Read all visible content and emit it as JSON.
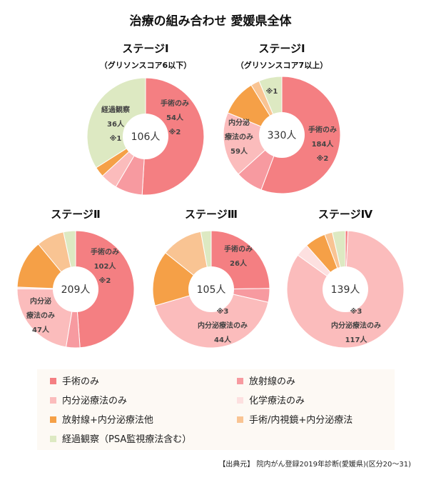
{
  "title": "治療の組み合わせ 愛媛県全体",
  "categories": [
    "手術のみ",
    "放射線のみ",
    "内分泌療法のみ",
    "化学療法のみ",
    "放射線+内分泌療法他",
    "手術/内視鏡+内分泌療法",
    "経過観察（PSA監視療法含む）"
  ],
  "colors": [
    "#f47f82",
    "#f79aa0",
    "#fbbcbc",
    "#fde0e0",
    "#f5a047",
    "#f9c493",
    "#dde9c2"
  ],
  "legend": [
    {
      "label": "手術のみ",
      "color": "#f47f82"
    },
    {
      "label": "放射線のみ",
      "color": "#f79aa0"
    },
    {
      "label": "内分泌療法のみ",
      "color": "#fbbcbc"
    },
    {
      "label": "化学療法のみ",
      "color": "#fde0e0"
    },
    {
      "label": "放射線+内分泌療法他",
      "color": "#f5a047"
    },
    {
      "label": "手術/内視鏡+内分泌療法",
      "color": "#f9c493"
    },
    {
      "label": "経過観察（PSA監視療法含む）",
      "color": "#dde9c2"
    }
  ],
  "source": "【出典元】 院内がん登録2019年診断(愛媛県)(区分20～31)",
  "chart_data": [
    {
      "type": "pie",
      "title": "ステージⅠ",
      "subtitle": "（グリソンスコア6以下）",
      "total": "106人",
      "categories": [
        "手術のみ",
        "放射線のみ",
        "内分泌療法のみ",
        "化学療法のみ",
        "放射線+内分泌療法他",
        "手術/内視鏡+内分泌療法",
        "経過観察（PSA監視療法含む）"
      ],
      "values": [
        54,
        8,
        5,
        0,
        3,
        0,
        36
      ],
      "labels": [
        {
          "lines": [
            "手術のみ",
            "54人",
            "※2"
          ]
        },
        {
          "lines": [
            "経過観察",
            "36人",
            "※1"
          ]
        }
      ]
    },
    {
      "type": "pie",
      "title": "ステージⅠ",
      "subtitle": "（グリソンスコア7以上）",
      "total": "330人",
      "categories": [
        "手術のみ",
        "放射線のみ",
        "内分泌療法のみ",
        "化学療法のみ",
        "放射線+内分泌療法他",
        "手術/内視鏡+内分泌療法",
        "経過観察（PSA監視療法含む）"
      ],
      "values": [
        184,
        25,
        59,
        0,
        33,
        8,
        21
      ],
      "labels": [
        {
          "lines": [
            "手術のみ",
            "184人",
            "※2"
          ]
        },
        {
          "lines": [
            "内分泌",
            "療法のみ",
            "59人"
          ]
        },
        {
          "lines": [
            "※1"
          ]
        }
      ]
    },
    {
      "type": "pie",
      "title": "ステージⅡ",
      "total": "209人",
      "categories": [
        "手術のみ",
        "放射線のみ",
        "内分泌療法のみ",
        "化学療法のみ",
        "放射線+内分泌療法他",
        "手術/内視鏡+内分泌療法",
        "経過観察（PSA監視療法含む）"
      ],
      "values": [
        102,
        8,
        47,
        1,
        28,
        16,
        7
      ],
      "labels": [
        {
          "lines": [
            "手術のみ",
            "102人",
            "※2"
          ]
        },
        {
          "lines": [
            "内分泌",
            "療法のみ",
            "47人"
          ]
        }
      ]
    },
    {
      "type": "pie",
      "title": "ステージⅢ",
      "total": "105人",
      "categories": [
        "手術のみ",
        "放射線のみ",
        "内分泌療法のみ",
        "化学療法のみ",
        "放射線+内分泌療法他",
        "手術/内視鏡+内分泌療法",
        "経過観察（PSA監視療法含む）"
      ],
      "values": [
        26,
        4,
        44,
        0,
        16,
        12,
        3
      ],
      "labels": [
        {
          "lines": [
            "手術のみ",
            "26人"
          ]
        },
        {
          "lines": [
            "※3",
            "内分泌療法のみ",
            "44人"
          ]
        }
      ]
    },
    {
      "type": "pie",
      "title": "ステージⅣ",
      "total": "139人",
      "categories": [
        "手術のみ",
        "放射線のみ",
        "内分泌療法のみ",
        "化学療法のみ",
        "放射線+内分泌療法他",
        "手術/内視鏡+内分泌療法",
        "経過観察（PSA監視療法含む）"
      ],
      "values": [
        1,
        0,
        117,
        5,
        8,
        3,
        5
      ],
      "labels": [
        {
          "lines": [
            "※3",
            "内分泌療法のみ",
            "117人"
          ]
        }
      ]
    }
  ]
}
